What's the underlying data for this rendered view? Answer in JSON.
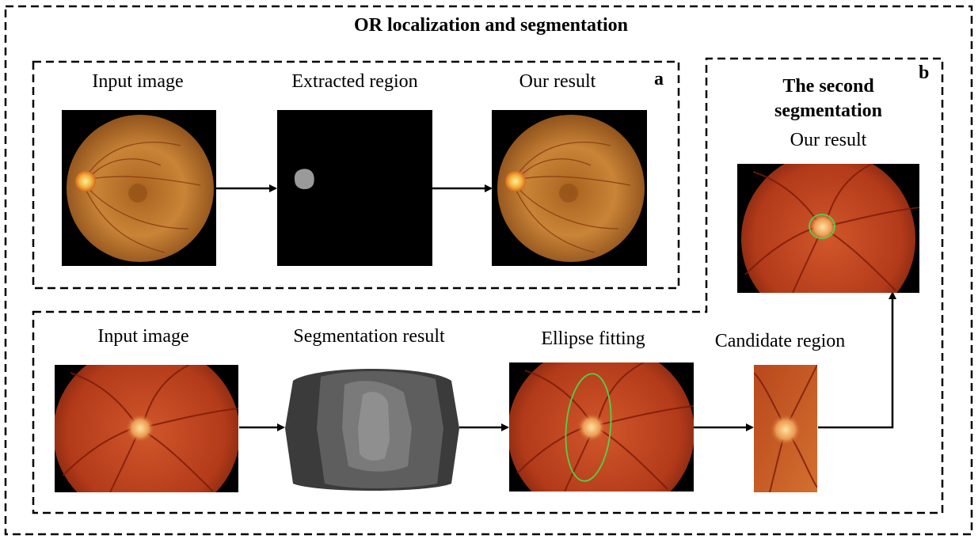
{
  "title": "OR localization and segmentation",
  "panel_a": {
    "tag": "a",
    "labels": {
      "input": "Input image",
      "extracted": "Extracted region",
      "result": "Our result"
    }
  },
  "panel_b": {
    "tag": "b",
    "heading_line1": "The second",
    "heading_line2": "segmentation",
    "result": "Our result"
  },
  "bottom": {
    "labels": {
      "input": "Input image",
      "segmentation": "Segmentation result",
      "ellipse": "Ellipse fitting",
      "candidate": "Candidate region"
    }
  },
  "colors": {
    "fundus_orange": "#c0792e",
    "fundus_red": "#b8381a",
    "ellipse_green": "#4fd34a",
    "mask_gray": "#9a9a9a"
  }
}
